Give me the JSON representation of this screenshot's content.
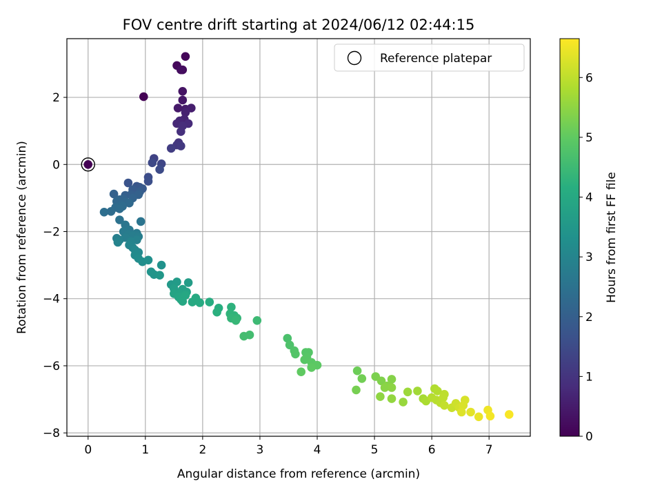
{
  "chart_data": {
    "type": "scatter",
    "title": "FOV centre drift starting at 2024/06/12 02:44:15",
    "xlabel": "Angular distance from reference (arcmin)",
    "ylabel": "Rotation from reference (arcmin)",
    "xlim": [
      -0.37,
      7.72
    ],
    "ylim": [
      -8.1,
      3.75
    ],
    "xticks": [
      0,
      1,
      2,
      3,
      4,
      5,
      6,
      7
    ],
    "yticks": [
      -8,
      -6,
      -4,
      -2,
      0,
      2
    ],
    "grid": true,
    "legend": {
      "position": "top-right",
      "entries": [
        "Reference platepar"
      ]
    },
    "reference_point": {
      "x": 0,
      "y": 0
    },
    "colorbar": {
      "label": "Hours from first FF file",
      "min": 0,
      "max": 6.65,
      "ticks": [
        0,
        1,
        2,
        3,
        4,
        5,
        6
      ],
      "colormap": "viridis"
    },
    "series": [
      {
        "points": [
          [
            0,
            0,
            0.0
          ],
          [
            0.97,
            2.02,
            0.03
          ],
          [
            1.7,
            3.22,
            0.1
          ],
          [
            1.55,
            2.95,
            0.15
          ],
          [
            1.65,
            2.82,
            0.2
          ],
          [
            1.62,
            2.82,
            0.25
          ],
          [
            1.65,
            2.18,
            0.35
          ],
          [
            1.65,
            1.92,
            0.4
          ],
          [
            1.57,
            1.68,
            0.45
          ],
          [
            1.7,
            1.65,
            0.5
          ],
          [
            1.8,
            1.68,
            0.55
          ],
          [
            1.7,
            1.55,
            0.6
          ],
          [
            1.68,
            1.35,
            0.65
          ],
          [
            1.6,
            1.3,
            0.7
          ],
          [
            1.55,
            1.22,
            0.75
          ],
          [
            1.75,
            1.22,
            0.8
          ],
          [
            1.65,
            1.15,
            0.85
          ],
          [
            1.62,
            0.98,
            0.9
          ],
          [
            1.58,
            0.65,
            1.0
          ],
          [
            1.55,
            0.58,
            1.05
          ],
          [
            1.62,
            0.55,
            1.1
          ],
          [
            1.45,
            0.48,
            1.2
          ],
          [
            1.15,
            0.18,
            1.3
          ],
          [
            1.28,
            0.02,
            1.4
          ],
          [
            1.12,
            0.05,
            1.45
          ],
          [
            1.25,
            -0.15,
            1.5
          ],
          [
            1.05,
            -0.38,
            1.55
          ],
          [
            1.05,
            -0.5,
            1.6
          ],
          [
            0.7,
            -0.55,
            1.7
          ],
          [
            0.85,
            -0.65,
            1.75
          ],
          [
            0.9,
            -0.68,
            1.8
          ],
          [
            0.95,
            -0.72,
            1.85
          ],
          [
            0.78,
            -0.75,
            1.9
          ],
          [
            0.9,
            -0.82,
            1.95
          ],
          [
            0.75,
            -0.9,
            2.0
          ],
          [
            0.65,
            -0.92,
            2.0
          ],
          [
            0.45,
            -0.88,
            2.05
          ],
          [
            0.88,
            -0.9,
            2.05
          ],
          [
            0.78,
            -1.0,
            2.1
          ],
          [
            0.62,
            -1.02,
            2.1
          ],
          [
            0.55,
            -1.05,
            2.15
          ],
          [
            0.5,
            -1.1,
            2.2
          ],
          [
            0.65,
            -1.12,
            2.2
          ],
          [
            0.72,
            -1.15,
            2.25
          ],
          [
            0.58,
            -1.2,
            2.25
          ],
          [
            0.6,
            -1.25,
            2.3
          ],
          [
            0.48,
            -1.28,
            2.3
          ],
          [
            0.55,
            -1.32,
            2.35
          ],
          [
            0.4,
            -1.4,
            2.35
          ],
          [
            0.28,
            -1.42,
            2.4
          ],
          [
            0.55,
            -1.65,
            2.5
          ],
          [
            0.92,
            -1.7,
            2.55
          ],
          [
            0.65,
            -1.8,
            2.6
          ],
          [
            0.72,
            -1.95,
            2.65
          ],
          [
            0.62,
            -2.0,
            2.7
          ],
          [
            0.85,
            -2.05,
            2.72
          ],
          [
            0.7,
            -2.08,
            2.75
          ],
          [
            0.78,
            -2.12,
            2.78
          ],
          [
            0.88,
            -2.15,
            2.8
          ],
          [
            0.65,
            -2.18,
            2.82
          ],
          [
            0.5,
            -2.2,
            2.85
          ],
          [
            0.55,
            -2.25,
            2.88
          ],
          [
            0.85,
            -2.25,
            2.9
          ],
          [
            0.75,
            -2.3,
            2.95
          ],
          [
            0.52,
            -2.32,
            2.95
          ],
          [
            0.72,
            -2.4,
            3.0
          ],
          [
            0.78,
            -2.48,
            3.0
          ],
          [
            0.82,
            -2.55,
            3.05
          ],
          [
            0.88,
            -2.62,
            3.1
          ],
          [
            0.82,
            -2.7,
            3.15
          ],
          [
            0.88,
            -2.8,
            3.2
          ],
          [
            0.95,
            -2.9,
            3.25
          ],
          [
            1.05,
            -2.85,
            3.3
          ],
          [
            1.28,
            -3.0,
            3.35
          ],
          [
            1.1,
            -3.2,
            3.4
          ],
          [
            1.15,
            -3.28,
            3.45
          ],
          [
            1.25,
            -3.3,
            3.5
          ],
          [
            1.45,
            -3.58,
            3.55
          ],
          [
            1.55,
            -3.5,
            3.6
          ],
          [
            1.75,
            -3.52,
            3.65
          ],
          [
            1.5,
            -3.7,
            3.7
          ],
          [
            1.65,
            -3.72,
            3.75
          ],
          [
            1.72,
            -3.8,
            3.8
          ],
          [
            1.6,
            -3.85,
            3.85
          ],
          [
            1.5,
            -3.85,
            3.85
          ],
          [
            1.58,
            -3.95,
            3.9
          ],
          [
            1.62,
            -4.02,
            3.92
          ],
          [
            1.7,
            -3.9,
            3.95
          ],
          [
            1.65,
            -4.08,
            3.95
          ],
          [
            1.82,
            -4.1,
            4.0
          ],
          [
            1.88,
            -3.98,
            4.0
          ],
          [
            1.95,
            -4.12,
            4.05
          ],
          [
            2.12,
            -4.1,
            4.1
          ],
          [
            2.28,
            -4.28,
            4.15
          ],
          [
            2.25,
            -4.4,
            4.2
          ],
          [
            2.5,
            -4.25,
            4.25
          ],
          [
            2.48,
            -4.45,
            4.3
          ],
          [
            2.55,
            -4.5,
            4.3
          ],
          [
            2.6,
            -4.58,
            4.35
          ],
          [
            2.5,
            -4.58,
            4.35
          ],
          [
            2.58,
            -4.65,
            4.4
          ],
          [
            2.95,
            -4.65,
            4.5
          ],
          [
            2.72,
            -5.12,
            4.6
          ],
          [
            2.82,
            -5.08,
            4.6
          ],
          [
            3.48,
            -5.18,
            4.7
          ],
          [
            3.52,
            -5.38,
            4.75
          ],
          [
            3.6,
            -5.55,
            4.8
          ],
          [
            3.62,
            -5.65,
            4.82
          ],
          [
            3.8,
            -5.6,
            4.85
          ],
          [
            3.85,
            -5.6,
            4.85
          ],
          [
            3.82,
            -5.75,
            4.88
          ],
          [
            3.78,
            -5.82,
            4.9
          ],
          [
            3.9,
            -5.9,
            4.92
          ],
          [
            4.0,
            -5.98,
            4.95
          ],
          [
            3.9,
            -6.05,
            4.98
          ],
          [
            3.72,
            -6.18,
            5.0
          ],
          [
            4.7,
            -6.15,
            5.15
          ],
          [
            4.78,
            -6.38,
            5.2
          ],
          [
            4.68,
            -6.72,
            5.25
          ],
          [
            5.02,
            -6.32,
            5.3
          ],
          [
            5.12,
            -6.45,
            5.35
          ],
          [
            5.3,
            -6.4,
            5.4
          ],
          [
            5.22,
            -6.6,
            5.42
          ],
          [
            5.18,
            -6.65,
            5.45
          ],
          [
            5.3,
            -6.65,
            5.48
          ],
          [
            5.1,
            -6.92,
            5.5
          ],
          [
            5.3,
            -6.98,
            5.55
          ],
          [
            5.5,
            -7.08,
            5.6
          ],
          [
            5.58,
            -6.78,
            5.65
          ],
          [
            5.75,
            -6.75,
            5.7
          ],
          [
            5.85,
            -6.98,
            5.75
          ],
          [
            5.9,
            -7.05,
            5.8
          ],
          [
            6.05,
            -6.68,
            5.85
          ],
          [
            6.1,
            -6.75,
            5.88
          ],
          [
            6.0,
            -6.95,
            5.9
          ],
          [
            6.08,
            -7.02,
            5.92
          ],
          [
            6.15,
            -7.1,
            5.95
          ],
          [
            6.22,
            -6.85,
            5.98
          ],
          [
            6.2,
            -6.95,
            6.0
          ],
          [
            6.22,
            -7.18,
            6.05
          ],
          [
            6.35,
            -7.25,
            6.1
          ],
          [
            6.42,
            -7.12,
            6.15
          ],
          [
            6.48,
            -7.25,
            6.2
          ],
          [
            6.58,
            -7.02,
            6.25
          ],
          [
            6.55,
            -7.18,
            6.28
          ],
          [
            6.52,
            -7.38,
            6.32
          ],
          [
            6.68,
            -7.38,
            6.38
          ],
          [
            6.82,
            -7.52,
            6.45
          ],
          [
            6.98,
            -7.32,
            6.5
          ],
          [
            7.02,
            -7.5,
            6.55
          ],
          [
            7.35,
            -7.45,
            6.6
          ]
        ]
      }
    ]
  }
}
